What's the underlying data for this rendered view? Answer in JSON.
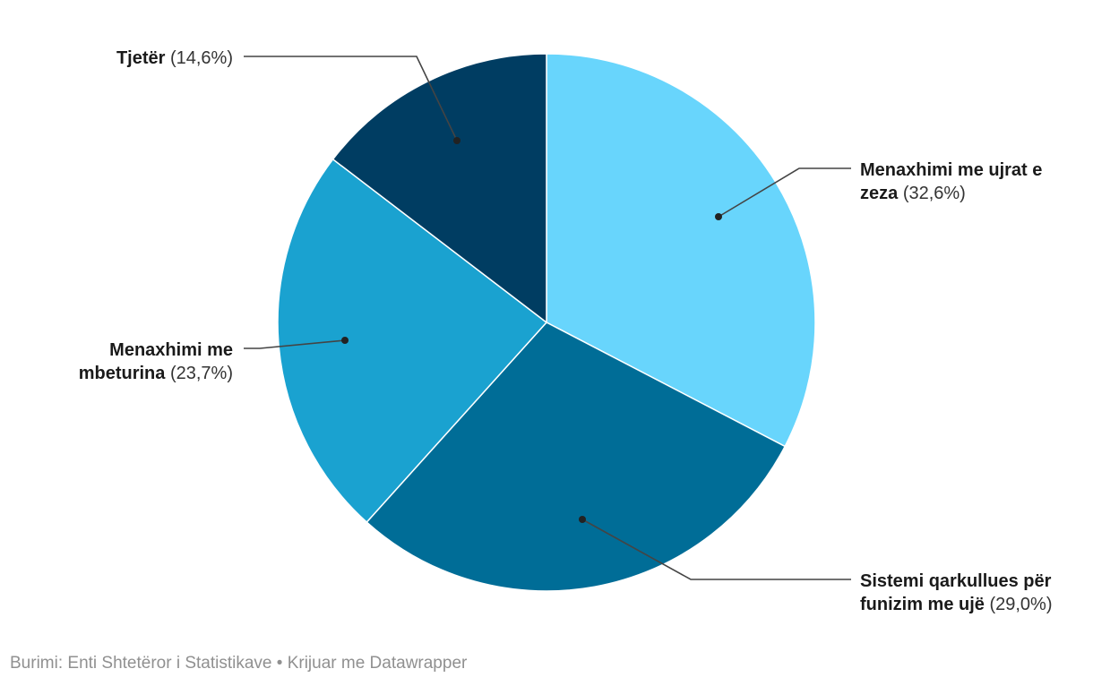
{
  "chart_data": {
    "type": "pie",
    "slices": [
      {
        "name": "Menaxhimi me ujrat e zeza",
        "value": 32.6,
        "value_label": "(32,6%)",
        "color": "#68d5fc"
      },
      {
        "name": "Sistemi qarkullues për funizim me ujë",
        "value": 29.0,
        "value_label": "(29,0%)",
        "color": "#006d97"
      },
      {
        "name": "Menaxhimi me mbeturina",
        "value": 23.7,
        "value_label": "(23,7%)",
        "color": "#1aa2d0"
      },
      {
        "name": "Tjetër",
        "value": 14.6,
        "value_label": "(14,6%)",
        "color": "#003d62"
      }
    ],
    "start": "12 o'clock",
    "direction": "clockwise",
    "legend": "none",
    "labels": "outside with leader lines"
  },
  "footer": {
    "source": "Burimi: Enti Shtetëror i Statistikave • Krijuar me Datawrapper"
  }
}
